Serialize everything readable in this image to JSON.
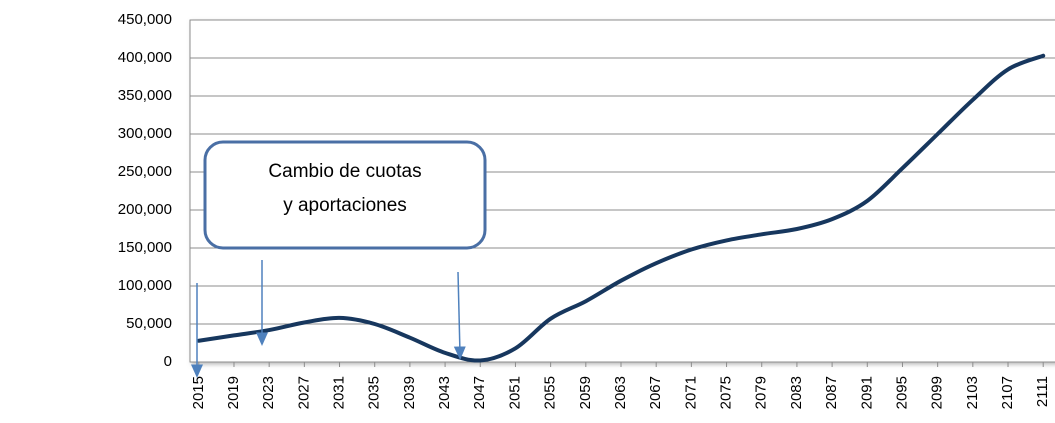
{
  "chart_data": {
    "type": "line",
    "x": [
      2015,
      2019,
      2023,
      2027,
      2031,
      2035,
      2039,
      2043,
      2047,
      2051,
      2055,
      2059,
      2063,
      2067,
      2071,
      2075,
      2079,
      2083,
      2087,
      2091,
      2095,
      2099,
      2103,
      2107,
      2111
    ],
    "series": [
      {
        "color": "#17375e",
        "values": [
          28000,
          35000,
          42000,
          52000,
          58000,
          50000,
          32000,
          12000,
          2000,
          18000,
          57000,
          80000,
          107000,
          130000,
          148000,
          160000,
          168000,
          175000,
          188000,
          212000,
          255000,
          300000,
          345000,
          385000,
          403000
        ]
      }
    ],
    "xlim": [
      2014,
      2112
    ],
    "xticks": [
      2015,
      2019,
      2023,
      2027,
      2031,
      2035,
      2039,
      2043,
      2047,
      2051,
      2055,
      2059,
      2063,
      2067,
      2071,
      2075,
      2079,
      2083,
      2087,
      2091,
      2095,
      2099,
      2103,
      2107,
      2111
    ],
    "ylim": [
      0,
      450000
    ],
    "yticks": [
      0,
      {
        "value": 50000,
        "label": "50,000"
      },
      {
        "value": 100000,
        "label": "100,000"
      },
      {
        "value": 150000,
        "label": "150,000"
      },
      {
        "value": 200000,
        "label": "200,000"
      },
      {
        "value": 250000,
        "label": "250,000"
      },
      {
        "value": 300000,
        "label": "300,000"
      },
      {
        "value": 350000,
        "label": "350,000"
      },
      {
        "value": 400000,
        "label": "400,000"
      },
      {
        "value": 450000,
        "label": "450,000"
      }
    ],
    "grid": true,
    "annotation": [
      "Cambio de cuotas",
      "y aportaciones"
    ]
  }
}
